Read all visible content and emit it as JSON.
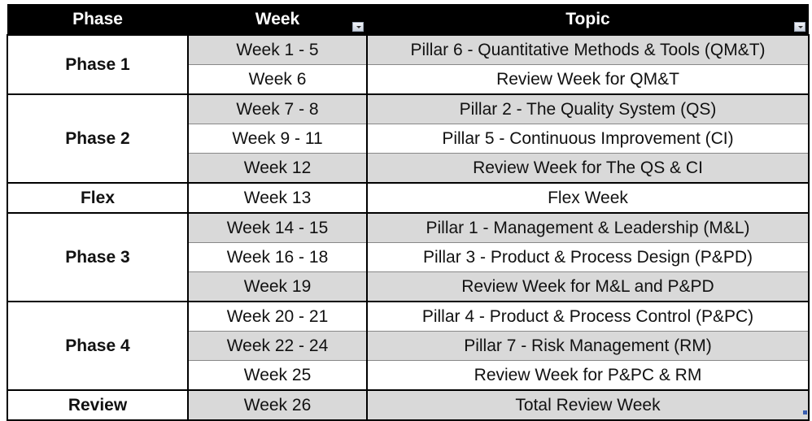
{
  "headers": {
    "phase": "Phase",
    "week": "Week",
    "topic": "Topic"
  },
  "header_filter_icons": [
    "dropdown-arrow-icon"
  ],
  "groups": [
    {
      "phase": "Phase 1",
      "rows": [
        {
          "week": "Week 1 - 5",
          "topic": "Pillar 6 - Quantitative Methods & Tools (QM&T)"
        },
        {
          "week": "Week 6",
          "topic": "Review Week for QM&T"
        }
      ]
    },
    {
      "phase": "Phase 2",
      "rows": [
        {
          "week": "Week 7 - 8",
          "topic": "Pillar 2 - The Quality System (QS)"
        },
        {
          "week": "Week 9 - 11",
          "topic": "Pillar 5 - Continuous Improvement (CI)"
        },
        {
          "week": "Week 12",
          "topic": "Review Week for The QS & CI"
        }
      ]
    },
    {
      "phase": "Flex",
      "rows": [
        {
          "week": "Week 13",
          "topic": "Flex Week"
        }
      ]
    },
    {
      "phase": "Phase 3",
      "rows": [
        {
          "week": "Week 14 - 15",
          "topic": "Pillar 1 - Management & Leadership (M&L)"
        },
        {
          "week": "Week 16 - 18",
          "topic": "Pillar 3 - Product & Process Design (P&PD)"
        },
        {
          "week": "Week 19",
          "topic": "Review Week for M&L and P&PD"
        }
      ]
    },
    {
      "phase": "Phase 4",
      "rows": [
        {
          "week": "Week 20 - 21",
          "topic": "Pillar 4 - Product & Process Control (P&PC)"
        },
        {
          "week": "Week 22 - 24",
          "topic": "Pillar 7 - Risk Management (RM)"
        },
        {
          "week": "Week 25",
          "topic": "Review Week for P&PC & RM"
        }
      ]
    },
    {
      "phase": "Review",
      "rows": [
        {
          "week": "Week 26",
          "topic": "Total Review Week"
        }
      ]
    }
  ],
  "colors": {
    "header_bg": "#000000",
    "band_gray": "#d9d9d9"
  }
}
